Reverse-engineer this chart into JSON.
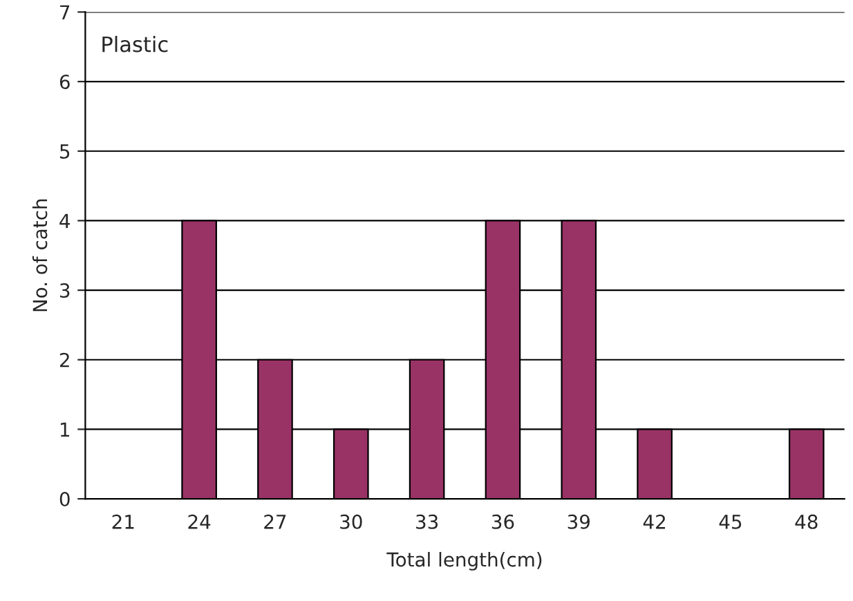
{
  "chart_data": {
    "type": "bar",
    "xlabel": "Total length(cm)",
    "ylabel": "No. of catch",
    "categories": [
      "21",
      "24",
      "27",
      "30",
      "33",
      "36",
      "39",
      "42",
      "45",
      "48"
    ],
    "values": [
      0,
      4,
      2,
      1,
      2,
      4,
      4,
      1,
      0,
      1
    ],
    "color": "#993366",
    "ylim": [
      0,
      7
    ],
    "yticks": [
      0,
      1,
      2,
      3,
      4,
      5,
      6,
      7
    ],
    "grid": "y",
    "legend": false,
    "annotations": [
      "Plastic"
    ]
  }
}
